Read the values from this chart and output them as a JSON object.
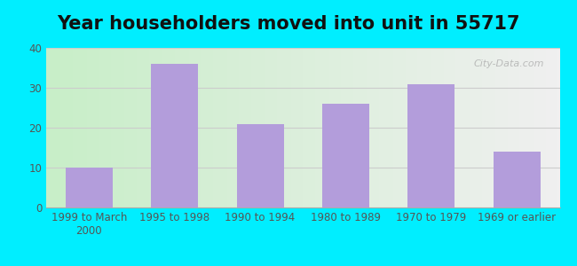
{
  "title": "Year householders moved into unit in 55717",
  "categories": [
    "1999 to March\n2000",
    "1995 to 1998",
    "1990 to 1994",
    "1980 to 1989",
    "1970 to 1979",
    "1969 or earlier"
  ],
  "values": [
    10,
    36,
    21,
    26,
    31,
    14
  ],
  "bar_color": "#b39ddb",
  "ylim": [
    0,
    40
  ],
  "yticks": [
    0,
    10,
    20,
    30,
    40
  ],
  "background_outer": "#00eeff",
  "grad_left": "#c8eec8",
  "grad_right": "#f0f0f0",
  "grid_color": "#cccccc",
  "title_fontsize": 15,
  "tick_fontsize": 8.5,
  "watermark_text": "City-Data.com"
}
